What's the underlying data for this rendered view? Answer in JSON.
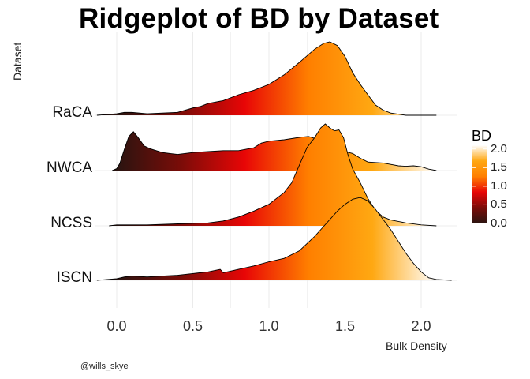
{
  "chart_data": {
    "type": "area",
    "title": "Ridgeplot of BD by Dataset",
    "xlabel": "Bulk Density",
    "ylabel": "Dataset",
    "xlim": [
      -0.15,
      2.25
    ],
    "x_ticks": [
      "0.0",
      "0.5",
      "1.0",
      "1.5",
      "2.0"
    ],
    "grid": true,
    "legend": {
      "title": "BD",
      "ticks": [
        "0.0",
        "0.5",
        "1.0",
        "1.5",
        "2.0"
      ],
      "position": "right",
      "range": [
        0.0,
        2.1
      ],
      "colors": [
        "#2a1410",
        "#7a0c08",
        "#e80606",
        "#ff7f00",
        "#ffa812",
        "#ffffff"
      ]
    },
    "caption": "@wills_skye",
    "series": [
      {
        "name": "RaCA",
        "points": [
          [
            -0.13,
            0
          ],
          [
            0,
            0.02
          ],
          [
            0.05,
            0.04
          ],
          [
            0.1,
            0.04
          ],
          [
            0.15,
            0.03
          ],
          [
            0.2,
            0.02
          ],
          [
            0.3,
            0.03
          ],
          [
            0.4,
            0.04
          ],
          [
            0.5,
            0.1
          ],
          [
            0.55,
            0.12
          ],
          [
            0.6,
            0.16
          ],
          [
            0.7,
            0.2
          ],
          [
            0.8,
            0.28
          ],
          [
            0.9,
            0.34
          ],
          [
            1.0,
            0.42
          ],
          [
            1.1,
            0.55
          ],
          [
            1.2,
            0.72
          ],
          [
            1.3,
            0.9
          ],
          [
            1.36,
            0.98
          ],
          [
            1.4,
            1.0
          ],
          [
            1.45,
            0.95
          ],
          [
            1.5,
            0.8
          ],
          [
            1.55,
            0.58
          ],
          [
            1.6,
            0.42
          ],
          [
            1.65,
            0.28
          ],
          [
            1.7,
            0.14
          ],
          [
            1.75,
            0.07
          ],
          [
            1.8,
            0.03
          ],
          [
            1.9,
            0.0
          ],
          [
            2.1,
            0
          ]
        ]
      },
      {
        "name": "NWCA",
        "points": [
          [
            -0.03,
            0
          ],
          [
            0,
            0.04
          ],
          [
            0.02,
            0.15
          ],
          [
            0.05,
            0.45
          ],
          [
            0.08,
            0.72
          ],
          [
            0.11,
            0.82
          ],
          [
            0.14,
            0.7
          ],
          [
            0.18,
            0.52
          ],
          [
            0.22,
            0.46
          ],
          [
            0.26,
            0.42
          ],
          [
            0.3,
            0.38
          ],
          [
            0.35,
            0.36
          ],
          [
            0.4,
            0.34
          ],
          [
            0.5,
            0.38
          ],
          [
            0.6,
            0.4
          ],
          [
            0.7,
            0.42
          ],
          [
            0.8,
            0.42
          ],
          [
            0.9,
            0.48
          ],
          [
            0.95,
            0.58
          ],
          [
            1.0,
            0.62
          ],
          [
            1.1,
            0.65
          ],
          [
            1.2,
            0.7
          ],
          [
            1.26,
            0.72
          ],
          [
            1.3,
            0.68
          ],
          [
            1.35,
            0.56
          ],
          [
            1.4,
            0.42
          ],
          [
            1.45,
            0.38
          ],
          [
            1.5,
            0.4
          ],
          [
            1.55,
            0.36
          ],
          [
            1.6,
            0.26
          ],
          [
            1.65,
            0.18
          ],
          [
            1.7,
            0.17
          ],
          [
            1.75,
            0.16
          ],
          [
            1.8,
            0.13
          ],
          [
            1.85,
            0.1
          ],
          [
            1.9,
            0.09
          ],
          [
            1.95,
            0.1
          ],
          [
            2.0,
            0.08
          ],
          [
            2.05,
            0.03
          ],
          [
            2.1,
            0
          ]
        ]
      },
      {
        "name": "NCSS",
        "points": [
          [
            -0.05,
            0
          ],
          [
            0,
            0.01
          ],
          [
            0.2,
            0.01
          ],
          [
            0.4,
            0.02
          ],
          [
            0.6,
            0.03
          ],
          [
            0.7,
            0.05
          ],
          [
            0.8,
            0.09
          ],
          [
            0.9,
            0.15
          ],
          [
            1.0,
            0.22
          ],
          [
            1.05,
            0.28
          ],
          [
            1.1,
            0.34
          ],
          [
            1.15,
            0.44
          ],
          [
            1.2,
            0.62
          ],
          [
            1.25,
            0.8
          ],
          [
            1.3,
            0.9
          ],
          [
            1.34,
            1.0
          ],
          [
            1.37,
            1.04
          ],
          [
            1.4,
            1.0
          ],
          [
            1.43,
            0.97
          ],
          [
            1.46,
            0.98
          ],
          [
            1.49,
            0.9
          ],
          [
            1.52,
            0.72
          ],
          [
            1.55,
            0.58
          ],
          [
            1.6,
            0.44
          ],
          [
            1.65,
            0.28
          ],
          [
            1.7,
            0.16
          ],
          [
            1.75,
            0.09
          ],
          [
            1.8,
            0.06
          ],
          [
            1.9,
            0.03
          ],
          [
            2.0,
            0.01
          ],
          [
            2.1,
            0
          ]
        ]
      },
      {
        "name": "ISCN",
        "points": [
          [
            -0.13,
            0
          ],
          [
            0,
            0.02
          ],
          [
            0.05,
            0.04
          ],
          [
            0.1,
            0.05
          ],
          [
            0.2,
            0.04
          ],
          [
            0.3,
            0.05
          ],
          [
            0.4,
            0.06
          ],
          [
            0.5,
            0.08
          ],
          [
            0.6,
            0.1
          ],
          [
            0.68,
            0.13
          ],
          [
            0.7,
            0.09
          ],
          [
            0.8,
            0.13
          ],
          [
            0.9,
            0.17
          ],
          [
            1.0,
            0.22
          ],
          [
            1.1,
            0.26
          ],
          [
            1.2,
            0.35
          ],
          [
            1.3,
            0.52
          ],
          [
            1.4,
            0.72
          ],
          [
            1.45,
            0.82
          ],
          [
            1.5,
            0.9
          ],
          [
            1.55,
            0.96
          ],
          [
            1.6,
            0.98
          ],
          [
            1.65,
            0.94
          ],
          [
            1.7,
            0.84
          ],
          [
            1.75,
            0.72
          ],
          [
            1.8,
            0.6
          ],
          [
            1.85,
            0.46
          ],
          [
            1.9,
            0.32
          ],
          [
            1.95,
            0.2
          ],
          [
            2.0,
            0.1
          ],
          [
            2.05,
            0.03
          ],
          [
            2.1,
            0.01
          ],
          [
            2.2,
            0
          ]
        ]
      }
    ]
  }
}
